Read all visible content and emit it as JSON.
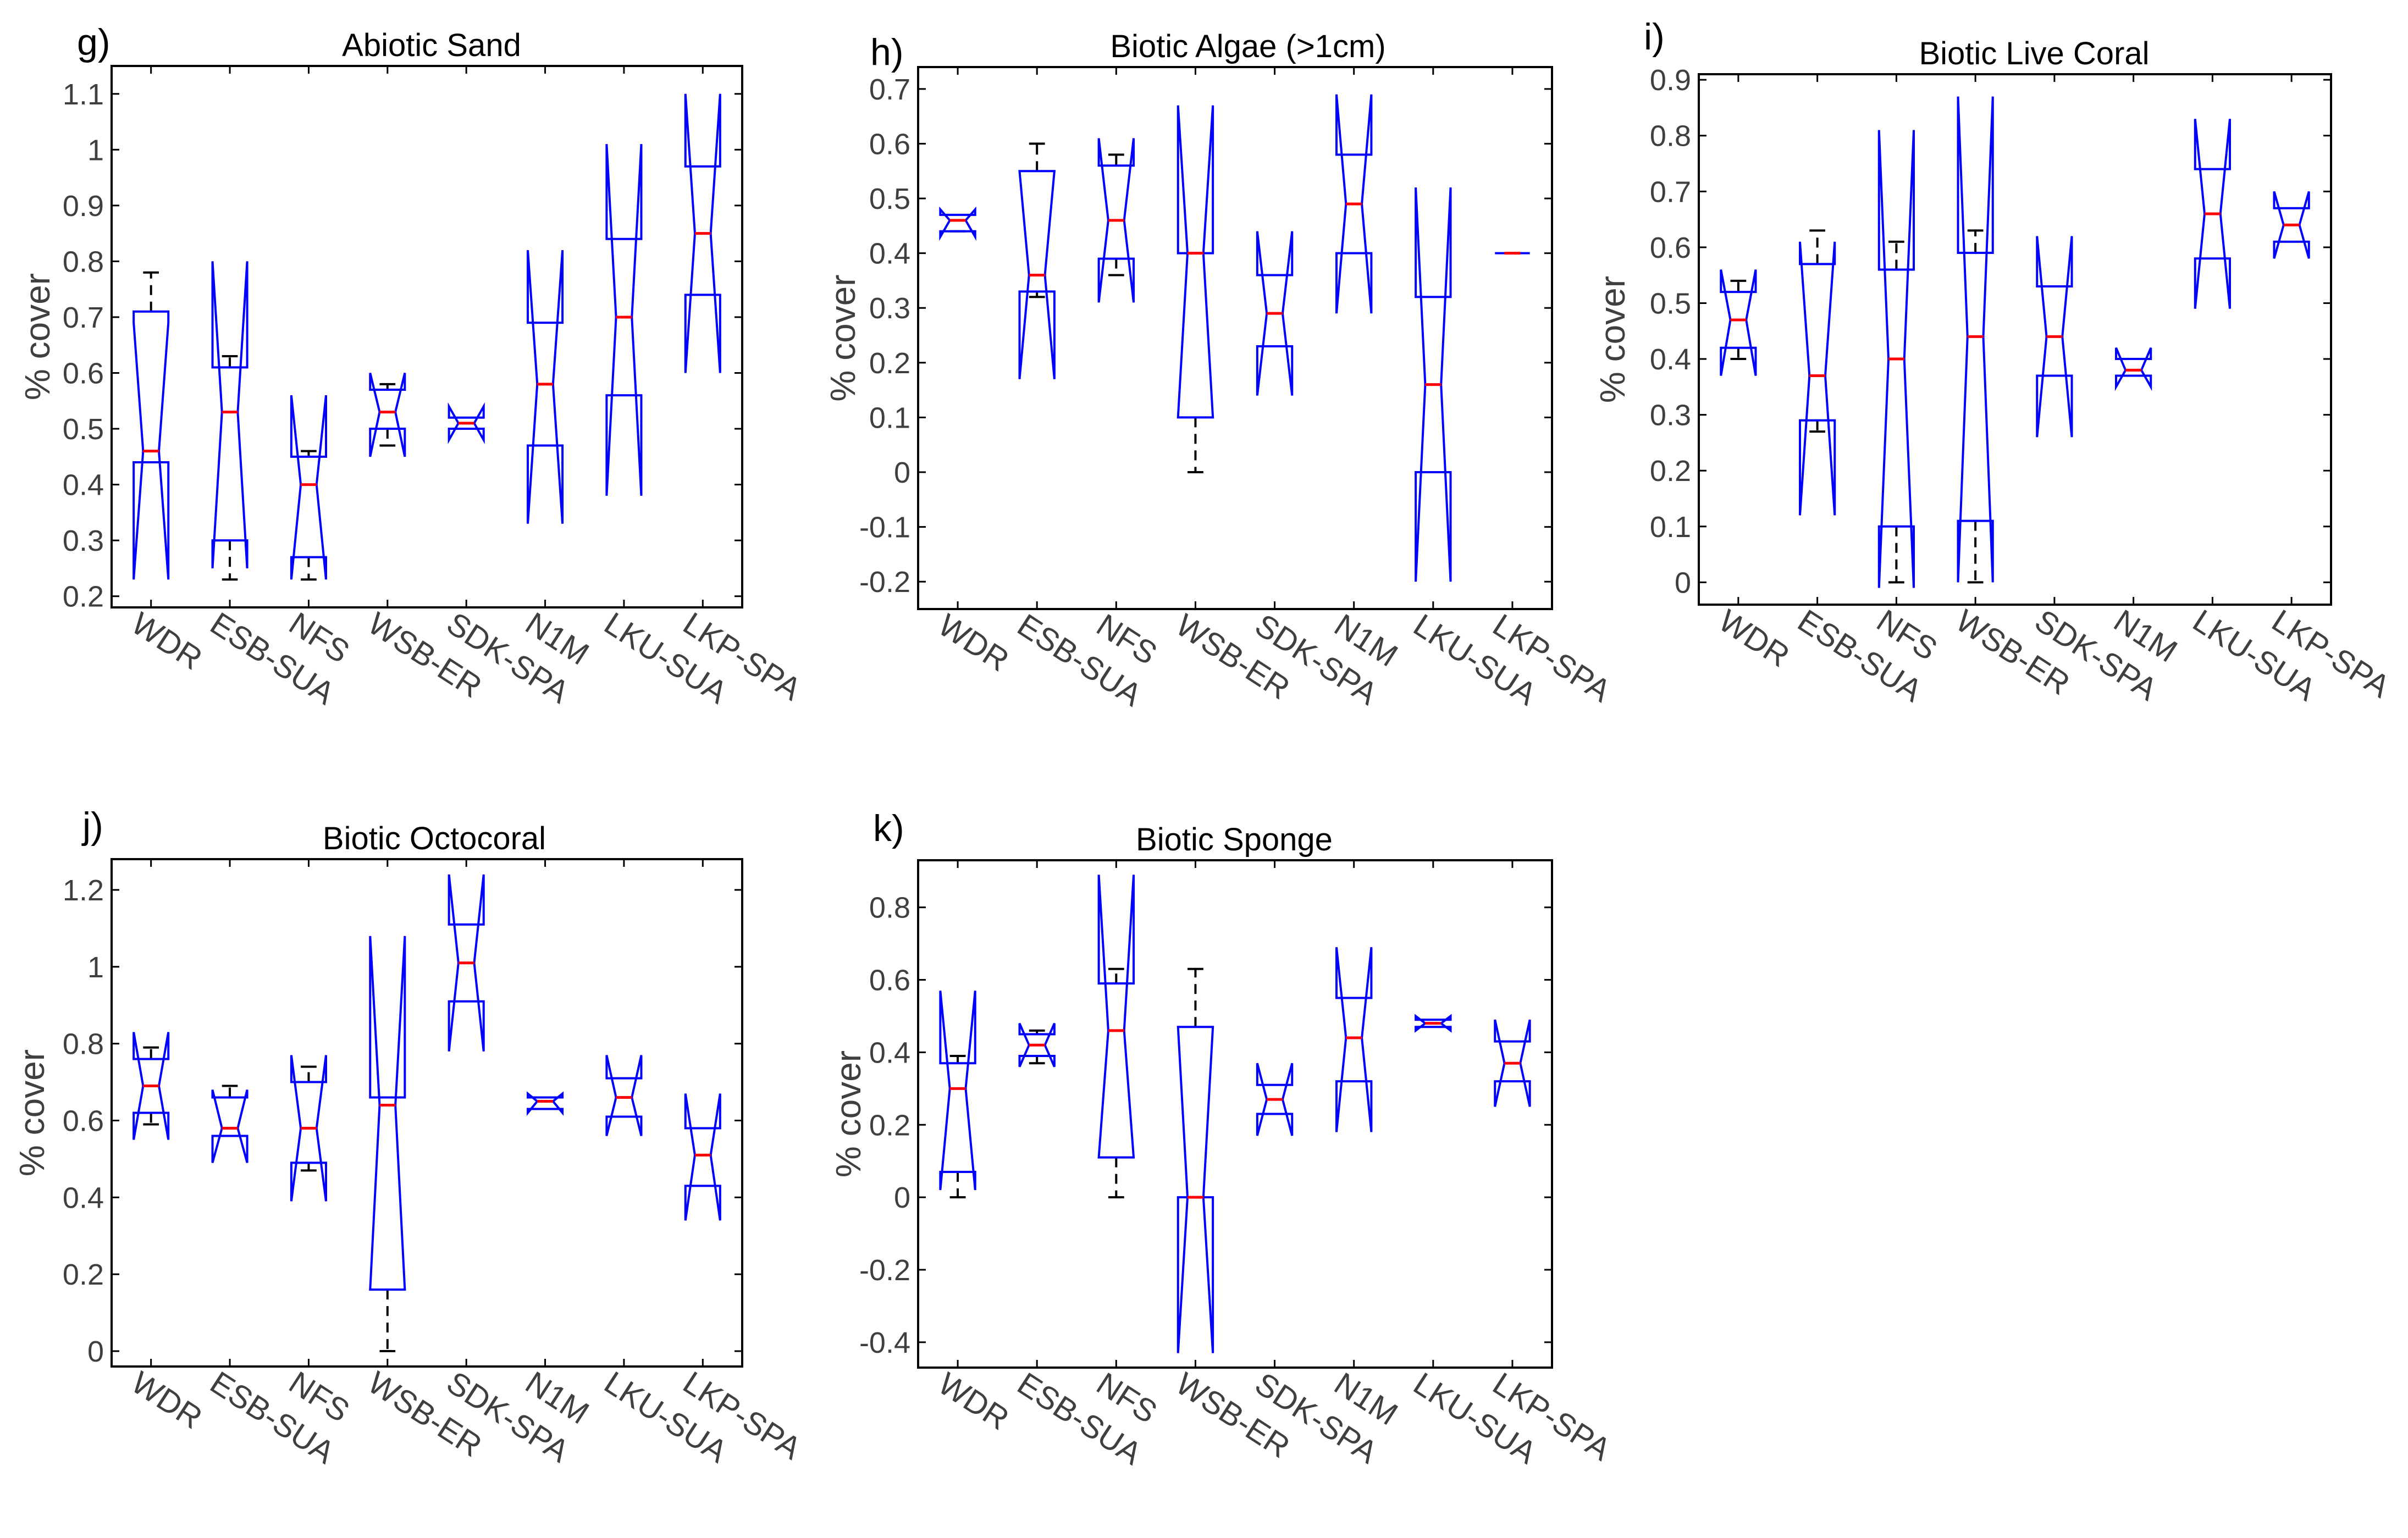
{
  "chart_data": [
    {
      "id": "g",
      "type": "box",
      "panel_label": "g)",
      "title": "Abiotic Sand",
      "ylabel": "% cover",
      "ylim": [
        0.18,
        1.15
      ],
      "yticks": [
        0.2,
        0.3,
        0.4,
        0.5,
        0.6,
        0.7,
        0.8,
        0.9,
        1.0,
        1.1
      ],
      "ytick_labels": [
        "0.2",
        "0.3",
        "0.4",
        "0.5",
        "0.6",
        "0.7",
        "0.8",
        "0.9",
        "1",
        "1.1"
      ],
      "categories": [
        "WDR",
        "ESB-SUA",
        "NFS",
        "WSB-ER",
        "SDK-SPA",
        "N1M",
        "LKU-SUA",
        "LKP-SPA"
      ],
      "boxes": [
        {
          "q1": 0.44,
          "median": 0.46,
          "q3": 0.71,
          "notch_lo": 0.23,
          "notch_hi": 0.69,
          "whisker_lo": 0.44,
          "whisker_hi": 0.78
        },
        {
          "q1": 0.3,
          "median": 0.53,
          "q3": 0.61,
          "notch_lo": 0.25,
          "notch_hi": 0.8,
          "whisker_lo": 0.23,
          "whisker_hi": 0.63
        },
        {
          "q1": 0.27,
          "median": 0.4,
          "q3": 0.45,
          "notch_lo": 0.23,
          "notch_hi": 0.56,
          "whisker_lo": 0.23,
          "whisker_hi": 0.46
        },
        {
          "q1": 0.5,
          "median": 0.53,
          "q3": 0.57,
          "notch_lo": 0.45,
          "notch_hi": 0.6,
          "whisker_lo": 0.47,
          "whisker_hi": 0.58
        },
        {
          "q1": 0.5,
          "median": 0.51,
          "q3": 0.52,
          "notch_lo": 0.48,
          "notch_hi": 0.54,
          "whisker_lo": null,
          "whisker_hi": null
        },
        {
          "q1": 0.47,
          "median": 0.58,
          "q3": 0.69,
          "notch_lo": 0.33,
          "notch_hi": 0.82,
          "whisker_lo": null,
          "whisker_hi": null
        },
        {
          "q1": 0.56,
          "median": 0.7,
          "q3": 0.84,
          "notch_lo": 0.38,
          "notch_hi": 1.01,
          "whisker_lo": null,
          "whisker_hi": null
        },
        {
          "q1": 0.74,
          "median": 0.85,
          "q3": 0.97,
          "notch_lo": 0.6,
          "notch_hi": 1.1,
          "whisker_lo": null,
          "whisker_hi": null
        }
      ]
    },
    {
      "id": "h",
      "type": "box",
      "panel_label": "h)",
      "title": "Biotic Algae (>1cm)",
      "ylabel": "% cover",
      "ylim": [
        -0.25,
        0.74
      ],
      "yticks": [
        -0.2,
        -0.1,
        0.0,
        0.1,
        0.2,
        0.3,
        0.4,
        0.5,
        0.6,
        0.7
      ],
      "ytick_labels": [
        "-0.2",
        "-0.1",
        "0",
        "0.1",
        "0.2",
        "0.3",
        "0.4",
        "0.5",
        "0.6",
        "0.7"
      ],
      "categories": [
        "WDR",
        "ESB-SUA",
        "NFS",
        "WSB-ER",
        "SDK-SPA",
        "N1M",
        "LKU-SUA",
        "LKP-SPA"
      ],
      "boxes": [
        {
          "q1": 0.44,
          "median": 0.46,
          "q3": 0.47,
          "notch_lo": 0.43,
          "notch_hi": 0.48,
          "whisker_lo": 0.44,
          "whisker_hi": null
        },
        {
          "q1": 0.33,
          "median": 0.36,
          "q3": 0.55,
          "notch_lo": 0.17,
          "notch_hi": 0.55,
          "whisker_lo": 0.32,
          "whisker_hi": 0.6
        },
        {
          "q1": 0.39,
          "median": 0.46,
          "q3": 0.56,
          "notch_lo": 0.31,
          "notch_hi": 0.61,
          "whisker_lo": 0.36,
          "whisker_hi": 0.58
        },
        {
          "q1": 0.1,
          "median": 0.4,
          "q3": 0.4,
          "notch_lo": 0.1,
          "notch_hi": 0.67,
          "whisker_lo": 0.0,
          "whisker_hi": null
        },
        {
          "q1": 0.23,
          "median": 0.29,
          "q3": 0.36,
          "notch_lo": 0.14,
          "notch_hi": 0.44,
          "whisker_lo": null,
          "whisker_hi": null
        },
        {
          "q1": 0.4,
          "median": 0.49,
          "q3": 0.58,
          "notch_lo": 0.29,
          "notch_hi": 0.69,
          "whisker_lo": null,
          "whisker_hi": null
        },
        {
          "q1": 0.0,
          "median": 0.16,
          "q3": 0.32,
          "notch_lo": -0.2,
          "notch_hi": 0.52,
          "whisker_lo": null,
          "whisker_hi": null
        },
        {
          "q1": 0.4,
          "median": 0.4,
          "q3": 0.4,
          "notch_lo": 0.4,
          "notch_hi": 0.4,
          "whisker_lo": null,
          "whisker_hi": null
        }
      ]
    },
    {
      "id": "i",
      "type": "box",
      "panel_label": "i)",
      "title": "Biotic Live Coral",
      "ylabel": "% cover",
      "ylim": [
        -0.04,
        0.91
      ],
      "yticks": [
        0.0,
        0.1,
        0.2,
        0.3,
        0.4,
        0.5,
        0.6,
        0.7,
        0.8,
        0.9
      ],
      "ytick_labels": [
        "0",
        "0.1",
        "0.2",
        "0.3",
        "0.4",
        "0.5",
        "0.6",
        "0.7",
        "0.8",
        "0.9"
      ],
      "categories": [
        "WDR",
        "ESB-SUA",
        "NFS",
        "WSB-ER",
        "SDK-SPA",
        "N1M",
        "LKU-SUA",
        "LKP-SPA"
      ],
      "boxes": [
        {
          "q1": 0.42,
          "median": 0.47,
          "q3": 0.52,
          "notch_lo": 0.37,
          "notch_hi": 0.56,
          "whisker_lo": 0.4,
          "whisker_hi": 0.54
        },
        {
          "q1": 0.29,
          "median": 0.37,
          "q3": 0.57,
          "notch_lo": 0.12,
          "notch_hi": 0.61,
          "whisker_lo": 0.27,
          "whisker_hi": 0.63
        },
        {
          "q1": 0.1,
          "median": 0.4,
          "q3": 0.56,
          "notch_lo": -0.01,
          "notch_hi": 0.81,
          "whisker_lo": 0.0,
          "whisker_hi": 0.61
        },
        {
          "q1": 0.11,
          "median": 0.44,
          "q3": 0.59,
          "notch_lo": 0.0,
          "notch_hi": 0.87,
          "whisker_lo": 0.0,
          "whisker_hi": 0.63
        },
        {
          "q1": 0.37,
          "median": 0.44,
          "q3": 0.53,
          "notch_lo": 0.26,
          "notch_hi": 0.62,
          "whisker_lo": null,
          "whisker_hi": null
        },
        {
          "q1": 0.37,
          "median": 0.38,
          "q3": 0.4,
          "notch_lo": 0.35,
          "notch_hi": 0.42,
          "whisker_lo": null,
          "whisker_hi": null
        },
        {
          "q1": 0.58,
          "median": 0.66,
          "q3": 0.74,
          "notch_lo": 0.49,
          "notch_hi": 0.83,
          "whisker_lo": null,
          "whisker_hi": null
        },
        {
          "q1": 0.61,
          "median": 0.64,
          "q3": 0.67,
          "notch_lo": 0.58,
          "notch_hi": 0.7,
          "whisker_lo": null,
          "whisker_hi": null
        }
      ]
    },
    {
      "id": "j",
      "type": "box",
      "panel_label": "j)",
      "title": "Biotic Octocoral",
      "ylabel": "% cover",
      "ylim": [
        -0.04,
        1.28
      ],
      "yticks": [
        0.0,
        0.2,
        0.4,
        0.6,
        0.8,
        1.0,
        1.2
      ],
      "ytick_labels": [
        "0",
        "0.2",
        "0.4",
        "0.6",
        "0.8",
        "1",
        "1.2"
      ],
      "categories": [
        "WDR",
        "ESB-SUA",
        "NFS",
        "WSB-ER",
        "SDK-SPA",
        "N1M",
        "LKU-SUA",
        "LKP-SPA"
      ],
      "boxes": [
        {
          "q1": 0.62,
          "median": 0.69,
          "q3": 0.76,
          "notch_lo": 0.55,
          "notch_hi": 0.83,
          "whisker_lo": 0.59,
          "whisker_hi": 0.79
        },
        {
          "q1": 0.56,
          "median": 0.58,
          "q3": 0.66,
          "notch_lo": 0.49,
          "notch_hi": 0.68,
          "whisker_lo": null,
          "whisker_hi": 0.69
        },
        {
          "q1": 0.49,
          "median": 0.58,
          "q3": 0.7,
          "notch_lo": 0.39,
          "notch_hi": 0.77,
          "whisker_lo": 0.47,
          "whisker_hi": 0.74
        },
        {
          "q1": 0.16,
          "median": 0.64,
          "q3": 0.66,
          "notch_lo": 0.16,
          "notch_hi": 1.08,
          "whisker_lo": 0.0,
          "whisker_hi": null
        },
        {
          "q1": 0.91,
          "median": 1.01,
          "q3": 1.11,
          "notch_lo": 0.78,
          "notch_hi": 1.24,
          "whisker_lo": null,
          "whisker_hi": null
        },
        {
          "q1": 0.63,
          "median": 0.65,
          "q3": 0.66,
          "notch_lo": 0.62,
          "notch_hi": 0.67,
          "whisker_lo": null,
          "whisker_hi": null
        },
        {
          "q1": 0.61,
          "median": 0.66,
          "q3": 0.71,
          "notch_lo": 0.56,
          "notch_hi": 0.77,
          "whisker_lo": null,
          "whisker_hi": null
        },
        {
          "q1": 0.43,
          "median": 0.51,
          "q3": 0.58,
          "notch_lo": 0.34,
          "notch_hi": 0.67,
          "whisker_lo": null,
          "whisker_hi": null
        }
      ]
    },
    {
      "id": "k",
      "type": "box",
      "panel_label": "k)",
      "title": "Biotic Sponge",
      "ylabel": "% cover",
      "ylim": [
        -0.47,
        0.93
      ],
      "yticks": [
        -0.4,
        -0.2,
        0.0,
        0.2,
        0.4,
        0.6,
        0.8
      ],
      "ytick_labels": [
        "-0.4",
        "-0.2",
        "0",
        "0.2",
        "0.4",
        "0.6",
        "0.8"
      ],
      "categories": [
        "WDR",
        "ESB-SUA",
        "NFS",
        "WSB-ER",
        "SDK-SPA",
        "N1M",
        "LKU-SUA",
        "LKP-SPA"
      ],
      "boxes": [
        {
          "q1": 0.07,
          "median": 0.3,
          "q3": 0.37,
          "notch_lo": 0.02,
          "notch_hi": 0.57,
          "whisker_lo": 0.0,
          "whisker_hi": 0.39
        },
        {
          "q1": 0.39,
          "median": 0.42,
          "q3": 0.45,
          "notch_lo": 0.36,
          "notch_hi": 0.48,
          "whisker_lo": 0.37,
          "whisker_hi": 0.46
        },
        {
          "q1": 0.11,
          "median": 0.46,
          "q3": 0.59,
          "notch_lo": 0.11,
          "notch_hi": 0.89,
          "whisker_lo": 0.0,
          "whisker_hi": 0.63
        },
        {
          "q1": 0.0,
          "median": 0.0,
          "q3": 0.47,
          "notch_lo": -0.43,
          "notch_hi": 0.47,
          "whisker_lo": null,
          "whisker_hi": 0.63
        },
        {
          "q1": 0.23,
          "median": 0.27,
          "q3": 0.31,
          "notch_lo": 0.17,
          "notch_hi": 0.37,
          "whisker_lo": null,
          "whisker_hi": null
        },
        {
          "q1": 0.32,
          "median": 0.44,
          "q3": 0.55,
          "notch_lo": 0.18,
          "notch_hi": 0.69,
          "whisker_lo": null,
          "whisker_hi": null
        },
        {
          "q1": 0.47,
          "median": 0.48,
          "q3": 0.49,
          "notch_lo": 0.46,
          "notch_hi": 0.5,
          "whisker_lo": null,
          "whisker_hi": null
        },
        {
          "q1": 0.32,
          "median": 0.37,
          "q3": 0.43,
          "notch_lo": 0.25,
          "notch_hi": 0.49,
          "whisker_lo": null,
          "whisker_hi": null
        }
      ]
    }
  ],
  "style": {
    "box_color": "#0000ff",
    "median_color": "#ff0000",
    "whisker_color": "#000000",
    "axis_color": "#000000",
    "label_color": "#3f3f3f"
  }
}
